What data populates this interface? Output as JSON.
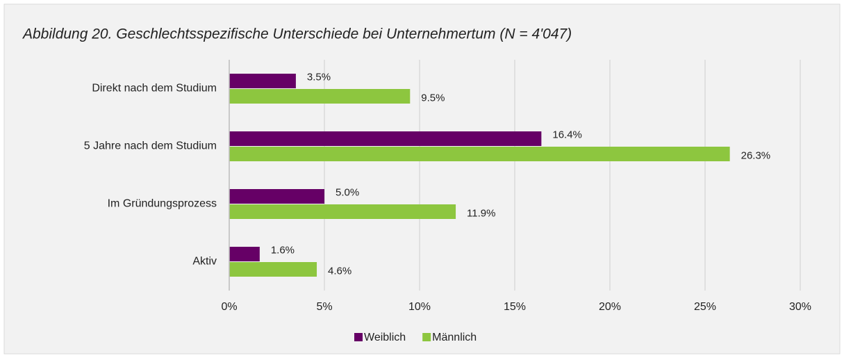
{
  "chart_data": {
    "type": "hbar",
    "title": "Abbildung 20. Geschlechtsspezifische Unterschiede bei Unternehmertum (N = 4'047)",
    "categories": [
      "Direkt nach dem Studium",
      "5 Jahre nach dem Studium",
      "Im Gründungsprozess",
      "Aktiv"
    ],
    "series": [
      {
        "name": "Weiblich",
        "color": "#660066",
        "values": [
          3.5,
          16.4,
          5.0,
          1.6
        ],
        "value_labels": [
          "3.5%",
          "16.4%",
          "5.0%",
          "1.6%"
        ]
      },
      {
        "name": "Männlich",
        "color": "#8dc63f",
        "values": [
          9.5,
          26.3,
          11.9,
          4.6
        ],
        "value_labels": [
          "9.5%",
          "26.3%",
          "11.9%",
          "4.6%"
        ]
      }
    ],
    "xlim": [
      0,
      30
    ],
    "xticks": [
      {
        "value": 0,
        "label": "0%"
      },
      {
        "value": 5,
        "label": "5%"
      },
      {
        "value": 10,
        "label": "10%"
      },
      {
        "value": 15,
        "label": "15%"
      },
      {
        "value": 20,
        "label": "20%"
      },
      {
        "value": 25,
        "label": "25%"
      },
      {
        "value": 30,
        "label": "30%"
      }
    ],
    "grid": true,
    "legend": "bottom"
  }
}
